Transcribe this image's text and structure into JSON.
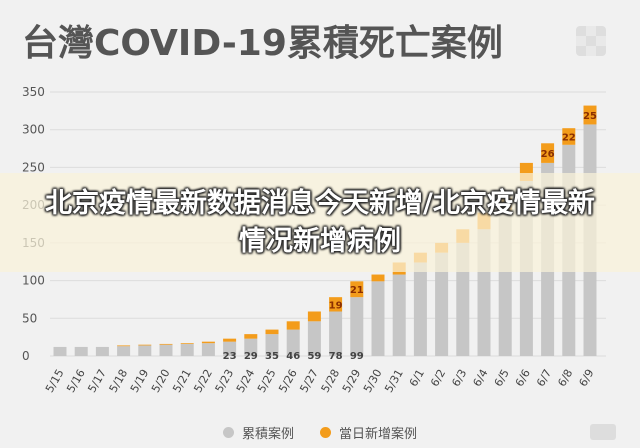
{
  "chart_data": {
    "type": "bar",
    "stacked": true,
    "title": "台灣COVID-19累積死亡案例",
    "ylim": [
      0,
      350
    ],
    "yticks": [
      0,
      50,
      100,
      150,
      200,
      250,
      300,
      350
    ],
    "grid": true,
    "legend_position": "bottom",
    "categories": [
      "5/15",
      "5/16",
      "5/17",
      "5/18",
      "5/19",
      "5/20",
      "5/21",
      "5/22",
      "5/23",
      "5/24",
      "5/25",
      "5/26",
      "5/27",
      "5/28",
      "5/29",
      "5/30",
      "5/31",
      "6/1",
      "6/2",
      "6/3",
      "6/4",
      "6/5",
      "6/6",
      "6/7",
      "6/8",
      "6/9"
    ],
    "series": [
      {
        "name": "累積案例",
        "color": "#c6c6c6",
        "values": [
          12,
          12,
          12,
          13,
          14,
          15,
          16,
          17,
          19,
          23,
          29,
          35,
          46,
          59,
          78,
          99,
          108,
          124,
          137,
          150,
          168,
          190,
          232,
          256,
          280,
          307
        ]
      },
      {
        "name": "當日新增案例",
        "color": "#f39c1b",
        "values": [
          0,
          0,
          0,
          1,
          1,
          1,
          1,
          2,
          4,
          6,
          6,
          11,
          13,
          19,
          21,
          9,
          16,
          13,
          13,
          18,
          22,
          20,
          24,
          26,
          22,
          25
        ]
      }
    ],
    "data_labels_total": [
      "",
      "",
      "",
      "",
      "",
      "",
      "",
      "",
      "23",
      "29",
      "35",
      "46",
      "59",
      "78",
      "99",
      "",
      "",
      "",
      "",
      "",
      "",
      "",
      "",
      "",
      "",
      ""
    ],
    "data_labels_daily": [
      "",
      "",
      "",
      "",
      "",
      "",
      "",
      "",
      "",
      "",
      "",
      "",
      "",
      "19",
      "21",
      "",
      "",
      "",
      "",
      "",
      "",
      "",
      "",
      "26",
      "22",
      "25"
    ]
  },
  "overlay": {
    "text": "北京疫情最新数据消息今天新增/北京疫情最新情况新增病例"
  },
  "colors": {
    "background": "#f1f1f1",
    "total_bar": "#c6c6c6",
    "daily_bar": "#f39c1b",
    "grid": "#dcdcdc"
  }
}
